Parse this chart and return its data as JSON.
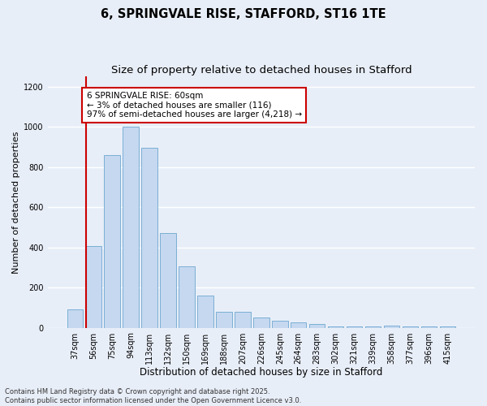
{
  "title_line1": "6, SPRINGVALE RISE, STAFFORD, ST16 1TE",
  "title_line2": "Size of property relative to detached houses in Stafford",
  "xlabel": "Distribution of detached houses by size in Stafford",
  "ylabel": "Number of detached properties",
  "categories": [
    "37sqm",
    "56sqm",
    "75sqm",
    "94sqm",
    "113sqm",
    "132sqm",
    "150sqm",
    "169sqm",
    "188sqm",
    "207sqm",
    "226sqm",
    "245sqm",
    "264sqm",
    "283sqm",
    "302sqm",
    "321sqm",
    "339sqm",
    "358sqm",
    "377sqm",
    "396sqm",
    "415sqm"
  ],
  "values": [
    90,
    405,
    860,
    1000,
    895,
    470,
    305,
    160,
    80,
    80,
    50,
    35,
    25,
    18,
    5,
    5,
    5,
    10,
    5,
    5,
    5
  ],
  "bar_color": "#c5d8f0",
  "bar_edge_color": "#7bafd4",
  "annotation_text_line1": "6 SPRINGVALE RISE: 60sqm",
  "annotation_text_line2": "← 3% of detached houses are smaller (116)",
  "annotation_text_line3": "97% of semi-detached houses are larger (4,218) →",
  "annotation_box_color": "#ffffff",
  "annotation_box_edge_color": "#cc0000",
  "vline_bar_index": 1,
  "ylim": [
    0,
    1250
  ],
  "yticks": [
    0,
    200,
    400,
    600,
    800,
    1000,
    1200
  ],
  "background_color": "#e8eef8",
  "grid_color": "#ffffff",
  "footer_text": "Contains HM Land Registry data © Crown copyright and database right 2025.\nContains public sector information licensed under the Open Government Licence v3.0.",
  "title_fontsize": 10.5,
  "subtitle_fontsize": 9.5,
  "xlabel_fontsize": 8.5,
  "ylabel_fontsize": 8,
  "tick_fontsize": 7,
  "annotation_fontsize": 7.5,
  "footer_fontsize": 6
}
